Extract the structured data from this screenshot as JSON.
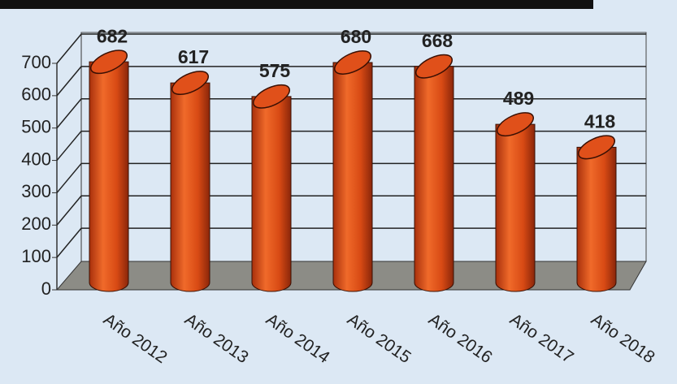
{
  "chart_data": {
    "type": "bar3d",
    "categories": [
      "Año 2012",
      "Año 2013",
      "Año 2014",
      "Año 2015",
      "Año 2016",
      "Año 2017",
      "Año 2018"
    ],
    "values": [
      682,
      617,
      575,
      680,
      668,
      489,
      418
    ],
    "color": "#e0501a",
    "ylim": [
      0,
      700
    ],
    "yticks": [
      0,
      100,
      200,
      300,
      400,
      500,
      600,
      700
    ],
    "grid": true
  }
}
